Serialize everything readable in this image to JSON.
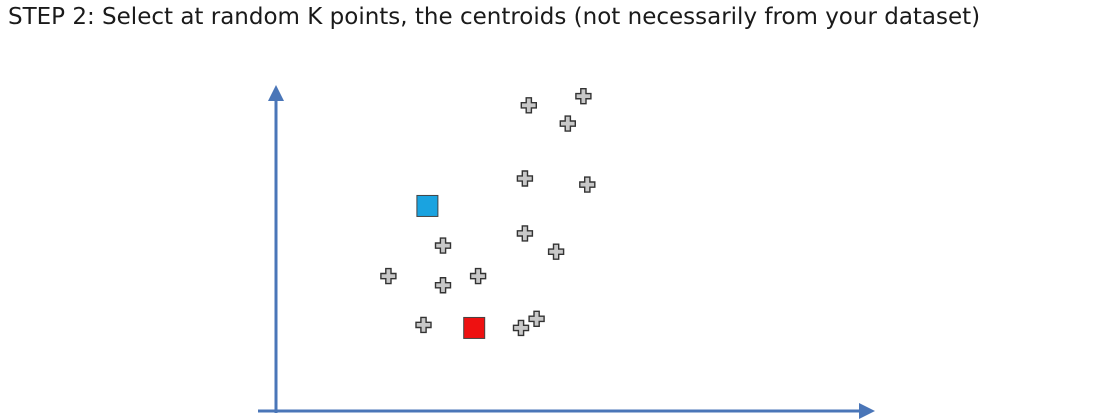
{
  "slide": {
    "title": "STEP 2: Select at random K points, the centroids (not necessarily from your dataset)"
  },
  "colors": {
    "axis": "#4a76b8",
    "point_fill": "#c8c8c8",
    "point_stroke": "#333333",
    "centroid_1": "#1aa3e0",
    "centroid_2": "#ee1111",
    "centroid_stroke": "#444444"
  },
  "chart_data": {
    "type": "scatter",
    "xlim": [
      0,
      100
    ],
    "ylim": [
      0,
      100
    ],
    "grid": false,
    "legend": "none",
    "series": [
      {
        "x": [
          52,
          62,
          66,
          51,
          67,
          51,
          59,
          30,
          16,
          30,
          39,
          25,
          50,
          54
        ],
        "y": [
          94,
          88,
          97,
          70,
          68,
          52,
          46,
          48,
          38,
          35,
          38,
          22,
          21,
          24
        ],
        "marker": "plus"
      },
      {
        "x": [
          26
        ],
        "y": [
          61
        ],
        "marker": "square",
        "color": "#1aa3e0"
      },
      {
        "x": [
          38
        ],
        "y": [
          21
        ],
        "marker": "square",
        "color": "#ee1111"
      }
    ]
  }
}
